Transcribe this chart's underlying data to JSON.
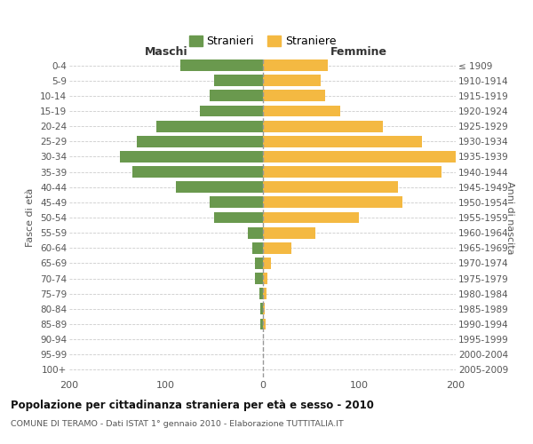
{
  "age_groups": [
    "0-4",
    "5-9",
    "10-14",
    "15-19",
    "20-24",
    "25-29",
    "30-34",
    "35-39",
    "40-44",
    "45-49",
    "50-54",
    "55-59",
    "60-64",
    "65-69",
    "70-74",
    "75-79",
    "80-84",
    "85-89",
    "90-94",
    "95-99",
    "100+"
  ],
  "birth_years": [
    "2005-2009",
    "2000-2004",
    "1995-1999",
    "1990-1994",
    "1985-1989",
    "1980-1984",
    "1975-1979",
    "1970-1974",
    "1965-1969",
    "1960-1964",
    "1955-1959",
    "1950-1954",
    "1945-1949",
    "1940-1944",
    "1935-1939",
    "1930-1934",
    "1925-1929",
    "1920-1924",
    "1915-1919",
    "1910-1914",
    "≤ 1909"
  ],
  "maschi": [
    85,
    50,
    55,
    65,
    110,
    130,
    148,
    135,
    90,
    55,
    50,
    15,
    11,
    8,
    8,
    3,
    2,
    2,
    0,
    0,
    0
  ],
  "femmine": [
    68,
    60,
    65,
    80,
    125,
    165,
    200,
    185,
    140,
    145,
    100,
    55,
    30,
    9,
    5,
    4,
    2,
    3,
    0,
    0,
    0
  ],
  "color_maschi": "#6a994e",
  "color_femmine": "#f4b942",
  "title": "Popolazione per cittadinanza straniera per età e sesso - 2010",
  "subtitle": "COMUNE DI TERAMO - Dati ISTAT 1° gennaio 2010 - Elaborazione TUTTITALIA.IT",
  "ylabel_left": "Fasce di età",
  "ylabel_right": "Anni di nascita",
  "xlabel_left": "Maschi",
  "xlabel_right": "Femmine",
  "legend_stranieri": "Stranieri",
  "legend_straniere": "Straniere",
  "xlim": 200,
  "background_color": "#ffffff",
  "grid_color": "#cccccc",
  "dashed_line_color": "#999999"
}
